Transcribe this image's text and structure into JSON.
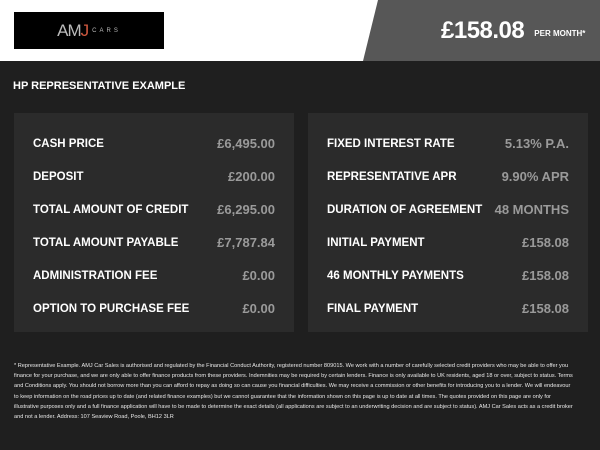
{
  "logo": {
    "text": "AMJ CARS"
  },
  "header": {
    "price": "£158.08",
    "per_month": "PER MONTH*"
  },
  "title": "HP REPRESENTATIVE EXAMPLE",
  "left": [
    {
      "label": "CASH PRICE",
      "value": "£6,495.00"
    },
    {
      "label": "DEPOSIT",
      "value": "£200.00"
    },
    {
      "label": "TOTAL AMOUNT OF CREDIT",
      "value": "£6,295.00"
    },
    {
      "label": "TOTAL AMOUNT PAYABLE",
      "value": "£7,787.84"
    },
    {
      "label": "ADMINISTRATION FEE",
      "value": "£0.00"
    },
    {
      "label": "OPTION TO PURCHASE FEE",
      "value": "£0.00"
    }
  ],
  "right": [
    {
      "label": "FIXED INTEREST RATE",
      "value": "5.13% P.A."
    },
    {
      "label": "REPRESENTATIVE APR",
      "value": "9.90% APR"
    },
    {
      "label": "DURATION OF AGREEMENT",
      "value": "48 MONTHS"
    },
    {
      "label": "INITIAL PAYMENT",
      "value": "£158.08"
    },
    {
      "label": "46 MONTHLY PAYMENTS",
      "value": "£158.08"
    },
    {
      "label": "FINAL PAYMENT",
      "value": "£158.08"
    }
  ],
  "footer": "* Representative Example. AMJ Car Sales is authorised and regulated by the Financial Conduct Authority, registered number 809015. We work with a number of carefully selected credit providers who may be able to offer you finance for your purchase, and we are only able to offer finance products from these providers. Indemnities may be required by certain lenders. Finance is only available to UK residents, aged 18 or over, subject to status. Terms and Conditions apply. You should not borrow more than you can afford to repay as doing so can cause you financial difficulties. We may receive a commission or other benefits for introducing you to a lender. We will endeavour to keep information on the road prices up to date (and related finance examples) but we cannot guarantee that the information shown on this page is up to date at all times. The quotes provided on this page are only for illustrative purposes only and a full finance application will have to be made to determine the exact details (all applications are subject to an underwriting decision and are subject to status). AMJ Car Sales acts as a credit broker and not a lender. Address: 107 Seaview Road, Poole, BH12 3LR"
}
